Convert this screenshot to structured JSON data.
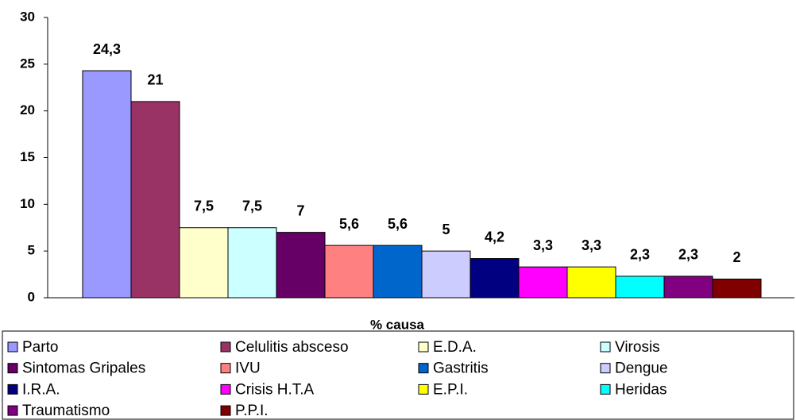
{
  "chart_data": {
    "type": "bar",
    "categories": [
      "% causa"
    ],
    "ylim": [
      0,
      30
    ],
    "yticks": [
      0,
      5,
      10,
      15,
      20,
      25,
      30
    ],
    "legend": "bottom",
    "series": [
      {
        "name": "Parto",
        "color": "#9999ff",
        "values": [
          24.3
        ],
        "value_labels": [
          "24,3"
        ]
      },
      {
        "name": "Celulitis absceso",
        "color": "#993366",
        "values": [
          21
        ],
        "value_labels": [
          "21"
        ]
      },
      {
        "name": "E.D.A.",
        "color": "#ffffcc",
        "values": [
          7.5
        ],
        "value_labels": [
          "7,5"
        ]
      },
      {
        "name": "Virosis",
        "color": "#ccffff",
        "values": [
          7.5
        ],
        "value_labels": [
          "7,5"
        ]
      },
      {
        "name": "Sintomas Gripales",
        "color": "#660066",
        "values": [
          7
        ],
        "value_labels": [
          "7"
        ]
      },
      {
        "name": "IVU",
        "color": "#ff8080",
        "values": [
          5.6
        ],
        "value_labels": [
          "5,6"
        ]
      },
      {
        "name": "Gastritis",
        "color": "#0066cc",
        "values": [
          5.6
        ],
        "value_labels": [
          "5,6"
        ]
      },
      {
        "name": "Dengue",
        "color": "#ccccff",
        "values": [
          5
        ],
        "value_labels": [
          "5"
        ]
      },
      {
        "name": "I.R.A.",
        "color": "#000080",
        "values": [
          4.2
        ],
        "value_labels": [
          "4,2"
        ]
      },
      {
        "name": "Crisis H.T.A",
        "color": "#ff00ff",
        "values": [
          3.3
        ],
        "value_labels": [
          "3,3"
        ]
      },
      {
        "name": "E.P.I.",
        "color": "#ffff00",
        "values": [
          3.3
        ],
        "value_labels": [
          "3,3"
        ]
      },
      {
        "name": "Heridas",
        "color": "#00ffff",
        "values": [
          2.3
        ],
        "value_labels": [
          "2,3"
        ]
      },
      {
        "name": "Traumatismo",
        "color": "#800080",
        "values": [
          2.3
        ],
        "value_labels": [
          "2,3"
        ]
      },
      {
        "name": "P.P.I.",
        "color": "#800000",
        "values": [
          2
        ],
        "value_labels": [
          "2"
        ]
      }
    ]
  }
}
